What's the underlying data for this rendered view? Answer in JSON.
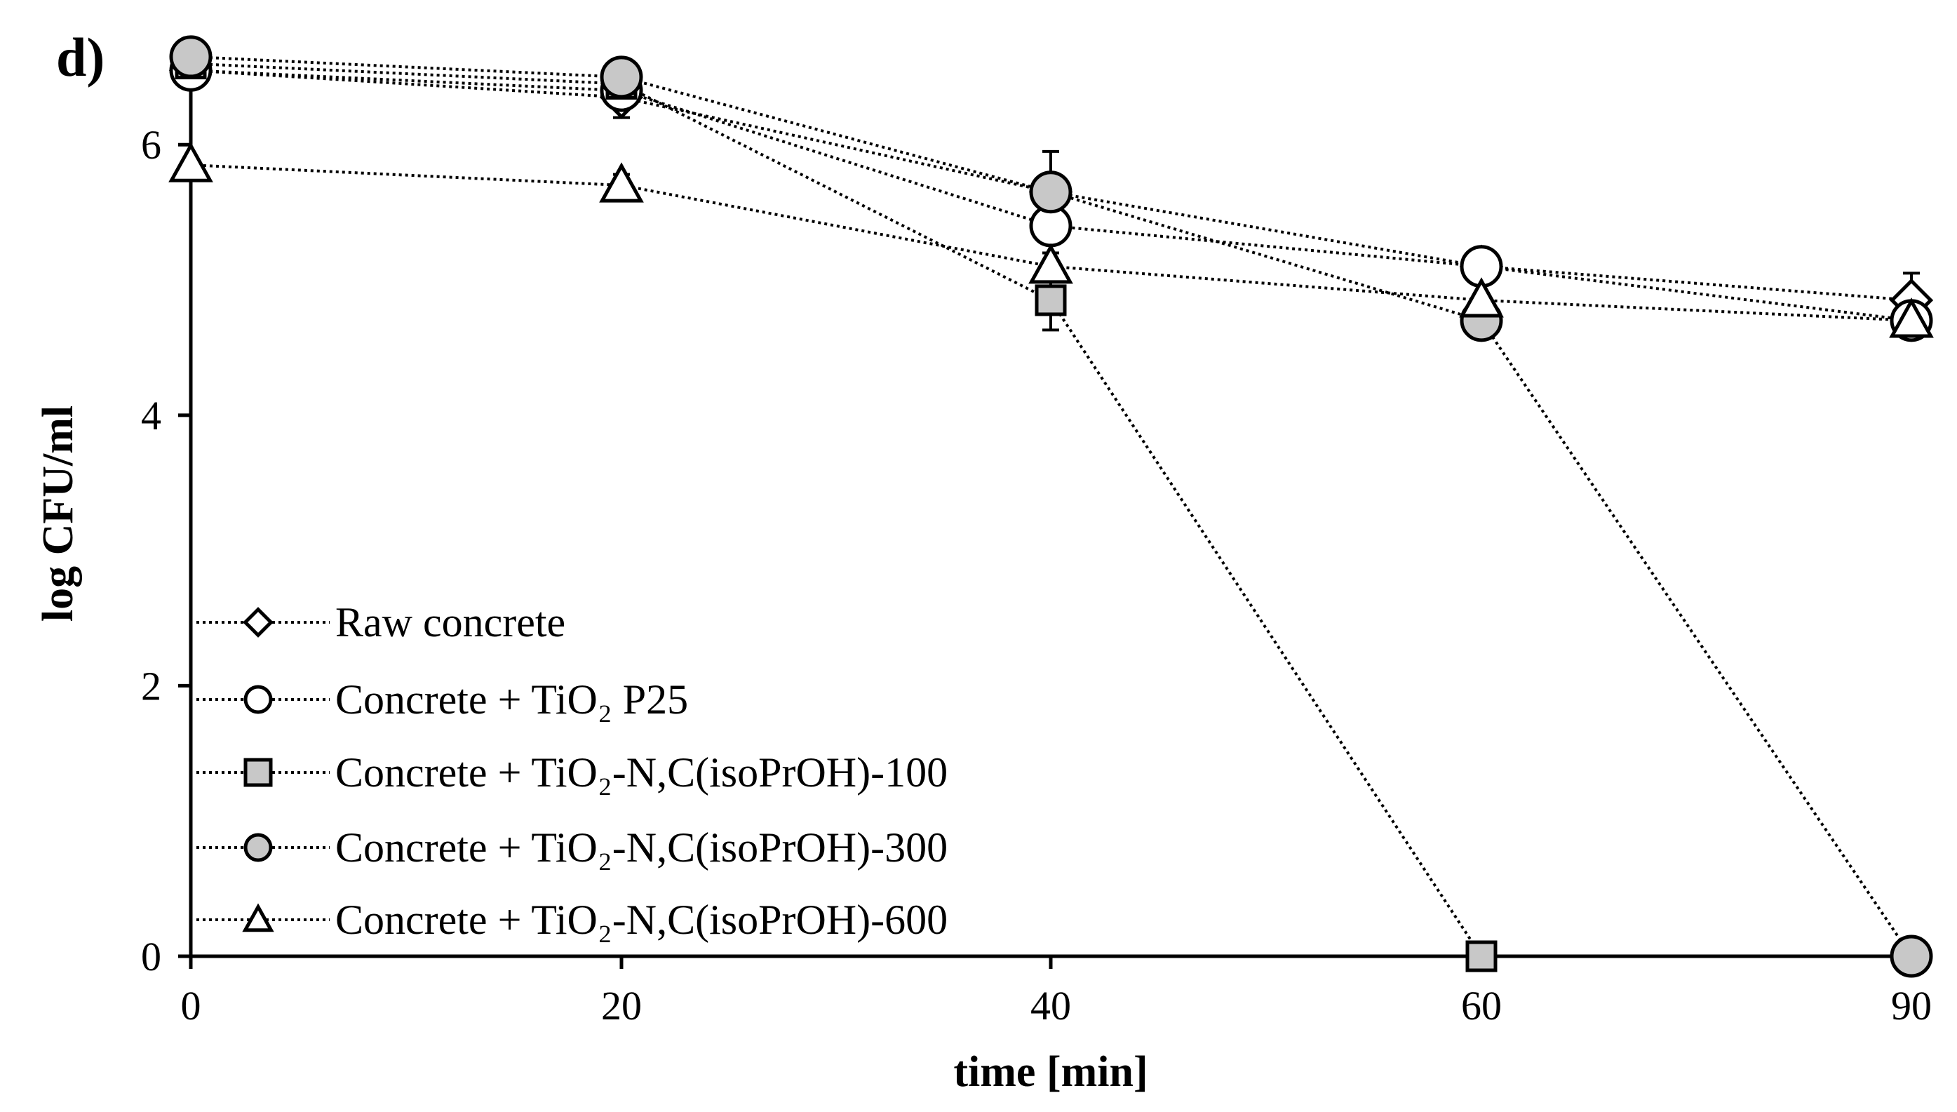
{
  "chart_data": {
    "type": "line",
    "panel_label": "d)",
    "xlabel": "time [min]",
    "ylabel": "log CFU/ml",
    "x": [
      "0",
      "20",
      "40",
      "60",
      "90"
    ],
    "ylim": [
      0,
      6.8
    ],
    "yticks": [
      "0",
      "2",
      "4",
      "6"
    ],
    "ytick_values": [
      0,
      2,
      4,
      6
    ],
    "grid": false,
    "legend_position": "bottom-left",
    "line_style": "dotted",
    "series": [
      {
        "name": "Raw concrete",
        "marker": "diamond",
        "fill": "#ffffff",
        "values": [
          6.55,
          6.35,
          5.65,
          5.1,
          4.85
        ],
        "errors": [
          0.05,
          0.15,
          0.1,
          0.05,
          0.2
        ]
      },
      {
        "name": "Concrete + TiO₂ P25",
        "marker": "circle",
        "fill": "#ffffff",
        "values": [
          6.55,
          6.4,
          5.4,
          5.1,
          4.7
        ],
        "errors": [
          0.05,
          0.05,
          0.1,
          0.05,
          0.05
        ]
      },
      {
        "name": "Concrete + TiO₂-N,C(isoPrOH)-100",
        "marker": "square",
        "fill": "#c8c8c8",
        "values": [
          6.6,
          6.45,
          4.85,
          0,
          null
        ],
        "errors": [
          0.05,
          0.05,
          0.22,
          0,
          null
        ]
      },
      {
        "name": "Concrete + TiO₂-N,C(isoPrOH)-300",
        "marker": "circle",
        "fill": "#c8c8c8",
        "values": [
          6.65,
          6.5,
          5.65,
          4.7,
          0
        ],
        "errors": [
          0.05,
          0.05,
          0.3,
          0.05,
          0
        ]
      },
      {
        "name": "Concrete + TiO₂-N,C(isoPrOH)-600",
        "marker": "triangle",
        "fill": "#ffffff",
        "values": [
          5.85,
          5.7,
          5.1,
          4.85,
          4.7
        ],
        "errors": [
          0.05,
          0.08,
          0.1,
          0.05,
          0.05
        ]
      }
    ]
  }
}
